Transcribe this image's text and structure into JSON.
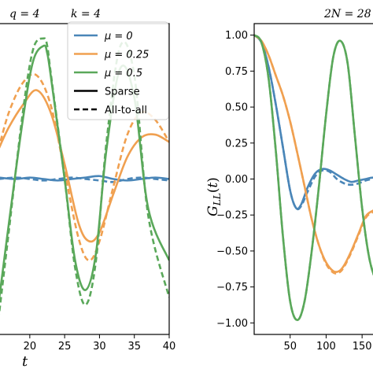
{
  "chart_data": [
    {
      "type": "line",
      "panel": "left",
      "title_parts": [
        "q = 4",
        "k = 4"
      ],
      "xlabel": "t",
      "ylabel": "",
      "xlim": [
        15.5,
        40
      ],
      "ylim": [
        -1.05,
        1.05
      ],
      "xticks": [
        20,
        25,
        30,
        35,
        40
      ],
      "grid": false,
      "legend": {
        "placement": "top-right",
        "entries": [
          {
            "label": "μ = 0",
            "color": "#4a86b8",
            "style": "solid"
          },
          {
            "label": "μ = 0.25",
            "color": "#f0a050",
            "style": "solid"
          },
          {
            "label": "μ = 0.5",
            "color": "#5aa85a",
            "style": "solid"
          },
          {
            "label": "Sparse",
            "color": "#000000",
            "style": "solid"
          },
          {
            "label": "All-to-all",
            "color": "#000000",
            "style": "dashed"
          }
        ]
      },
      "series": [
        {
          "mu": "0",
          "variant": "Sparse",
          "color": "#4a86b8",
          "dashed": false,
          "x": [
            15.5,
            18,
            20,
            22,
            24,
            26,
            28,
            30,
            32,
            34,
            36,
            38,
            40
          ],
          "y": [
            0.01,
            0.0,
            0.01,
            0.0,
            -0.01,
            0.0,
            0.01,
            0.02,
            0.0,
            -0.01,
            0.0,
            0.01,
            0.0
          ]
        },
        {
          "mu": "0",
          "variant": "All-to-all",
          "color": "#4a86b8",
          "dashed": true,
          "x": [
            15.5,
            18,
            20,
            22,
            24,
            26,
            28,
            30,
            32,
            34,
            36,
            38,
            40
          ],
          "y": [
            0.0,
            0.01,
            0.0,
            -0.01,
            0.0,
            0.01,
            0.0,
            -0.01,
            -0.02,
            0.0,
            0.01,
            0.0,
            -0.01
          ]
        },
        {
          "mu": "0.25",
          "variant": "Sparse",
          "color": "#f0a050",
          "dashed": false,
          "x": [
            15.5,
            17,
            19,
            21,
            23,
            25,
            27,
            28.5,
            30,
            32,
            34,
            36,
            38,
            40
          ],
          "y": [
            0.2,
            0.35,
            0.5,
            0.6,
            0.45,
            0.1,
            -0.3,
            -0.42,
            -0.36,
            -0.1,
            0.15,
            0.28,
            0.3,
            0.25
          ]
        },
        {
          "mu": "0.25",
          "variant": "All-to-all",
          "color": "#f0a050",
          "dashed": true,
          "x": [
            15.5,
            17,
            19,
            21,
            23,
            25,
            27,
            28.5,
            30,
            32,
            34,
            36,
            38,
            40
          ],
          "y": [
            0.2,
            0.45,
            0.65,
            0.7,
            0.5,
            0.05,
            -0.4,
            -0.55,
            -0.42,
            -0.05,
            0.3,
            0.45,
            0.4,
            0.25
          ]
        },
        {
          "mu": "0.5",
          "variant": "Sparse",
          "color": "#5aa85a",
          "dashed": false,
          "x": [
            15.5,
            17,
            19,
            20.5,
            22,
            22.5,
            23,
            25,
            26.5,
            28,
            29.5,
            31,
            33,
            35,
            37,
            40
          ],
          "y": [
            -0.85,
            -0.3,
            0.4,
            0.8,
            0.9,
            0.85,
            0.7,
            0.0,
            -0.55,
            -0.75,
            -0.5,
            0.2,
            0.75,
            0.55,
            -0.2,
            -0.55
          ]
        },
        {
          "mu": "0.5",
          "variant": "All-to-all",
          "color": "#5aa85a",
          "dashed": true,
          "x": [
            15.5,
            17,
            19,
            20.5,
            22,
            22.5,
            23,
            25,
            26.5,
            28,
            29.5,
            31,
            33,
            35,
            37,
            40
          ],
          "y": [
            -0.95,
            -0.35,
            0.45,
            0.88,
            0.95,
            0.9,
            0.72,
            0.0,
            -0.6,
            -0.85,
            -0.55,
            0.25,
            0.9,
            0.7,
            -0.25,
            -0.8
          ]
        }
      ]
    },
    {
      "type": "line",
      "panel": "right",
      "title_parts": [
        "2N = 28"
      ],
      "xlabel": "",
      "ylabel": "G_LL(t)",
      "xlim": [
        0,
        175
      ],
      "ylim": [
        -1.08,
        1.08
      ],
      "xticks": [
        50,
        100,
        150
      ],
      "yticks": [
        1.0,
        0.75,
        0.5,
        0.25,
        0.0,
        -0.25,
        -0.5,
        -0.75,
        -1.0
      ],
      "ytick_labels": [
        "1.00",
        "0.75",
        "0.50",
        "0.25",
        "0.00",
        "−0.25",
        "−0.50",
        "−0.75",
        "−1.00"
      ],
      "grid": false,
      "series": [
        {
          "mu": "0",
          "variant": "Sparse",
          "color": "#4a86b8",
          "dashed": false,
          "x": [
            0,
            10,
            20,
            30,
            40,
            50,
            58,
            65,
            75,
            85,
            95,
            105,
            115,
            125,
            135,
            145,
            155,
            165,
            175
          ],
          "y": [
            1.0,
            0.95,
            0.78,
            0.52,
            0.22,
            -0.08,
            -0.2,
            -0.18,
            -0.05,
            0.04,
            0.07,
            0.06,
            0.03,
            0.0,
            -0.02,
            -0.01,
            0.0,
            0.01,
            0.0
          ]
        },
        {
          "mu": "0",
          "variant": "All-to-all",
          "color": "#4a86b8",
          "dashed": true,
          "x": [
            0,
            10,
            20,
            30,
            40,
            50,
            58,
            65,
            75,
            85,
            95,
            105,
            115,
            125,
            135,
            145,
            155,
            165,
            175
          ],
          "y": [
            1.0,
            0.95,
            0.78,
            0.52,
            0.22,
            -0.08,
            -0.2,
            -0.19,
            -0.08,
            0.02,
            0.06,
            0.05,
            0.0,
            -0.03,
            -0.04,
            -0.03,
            -0.01,
            0.0,
            0.0
          ]
        },
        {
          "mu": "0.25",
          "variant": "Sparse",
          "color": "#f0a050",
          "dashed": false,
          "x": [
            0,
            10,
            20,
            30,
            40,
            50,
            60,
            70,
            80,
            90,
            100,
            110,
            118,
            125,
            135,
            145,
            155,
            165,
            175
          ],
          "y": [
            1.0,
            0.96,
            0.86,
            0.72,
            0.58,
            0.4,
            0.18,
            -0.05,
            -0.28,
            -0.46,
            -0.58,
            -0.64,
            -0.64,
            -0.6,
            -0.5,
            -0.38,
            -0.26,
            -0.22,
            -0.2
          ]
        },
        {
          "mu": "0.25",
          "variant": "All-to-all",
          "color": "#f0a050",
          "dashed": true,
          "x": [
            0,
            10,
            20,
            30,
            40,
            50,
            60,
            70,
            80,
            90,
            100,
            110,
            118,
            125,
            135,
            145,
            155,
            165,
            175
          ],
          "y": [
            1.0,
            0.96,
            0.86,
            0.72,
            0.58,
            0.4,
            0.18,
            -0.05,
            -0.28,
            -0.46,
            -0.59,
            -0.65,
            -0.65,
            -0.61,
            -0.51,
            -0.39,
            -0.27,
            -0.23,
            -0.21
          ]
        },
        {
          "mu": "0.5",
          "variant": "Sparse",
          "color": "#5aa85a",
          "dashed": false,
          "x": [
            0,
            10,
            20,
            30,
            40,
            50,
            60,
            70,
            80,
            90,
            100,
            110,
            120,
            130,
            140,
            150,
            160,
            170,
            175
          ],
          "y": [
            1.0,
            0.95,
            0.7,
            0.2,
            -0.4,
            -0.85,
            -0.98,
            -0.85,
            -0.5,
            -0.05,
            0.45,
            0.85,
            0.96,
            0.8,
            0.3,
            -0.2,
            -0.55,
            -0.7,
            -0.6
          ]
        },
        {
          "mu": "0.5",
          "variant": "All-to-all",
          "color": "#5aa85a",
          "dashed": true,
          "x": [
            0,
            10,
            20,
            30,
            40,
            50,
            60,
            70,
            80,
            90,
            100,
            110,
            120,
            130,
            140,
            150,
            160,
            170,
            175
          ],
          "y": [
            1.0,
            0.95,
            0.7,
            0.2,
            -0.4,
            -0.85,
            -0.98,
            -0.85,
            -0.5,
            -0.05,
            0.45,
            0.85,
            0.96,
            0.8,
            0.3,
            -0.2,
            -0.55,
            -0.7,
            -0.6
          ]
        }
      ]
    }
  ]
}
